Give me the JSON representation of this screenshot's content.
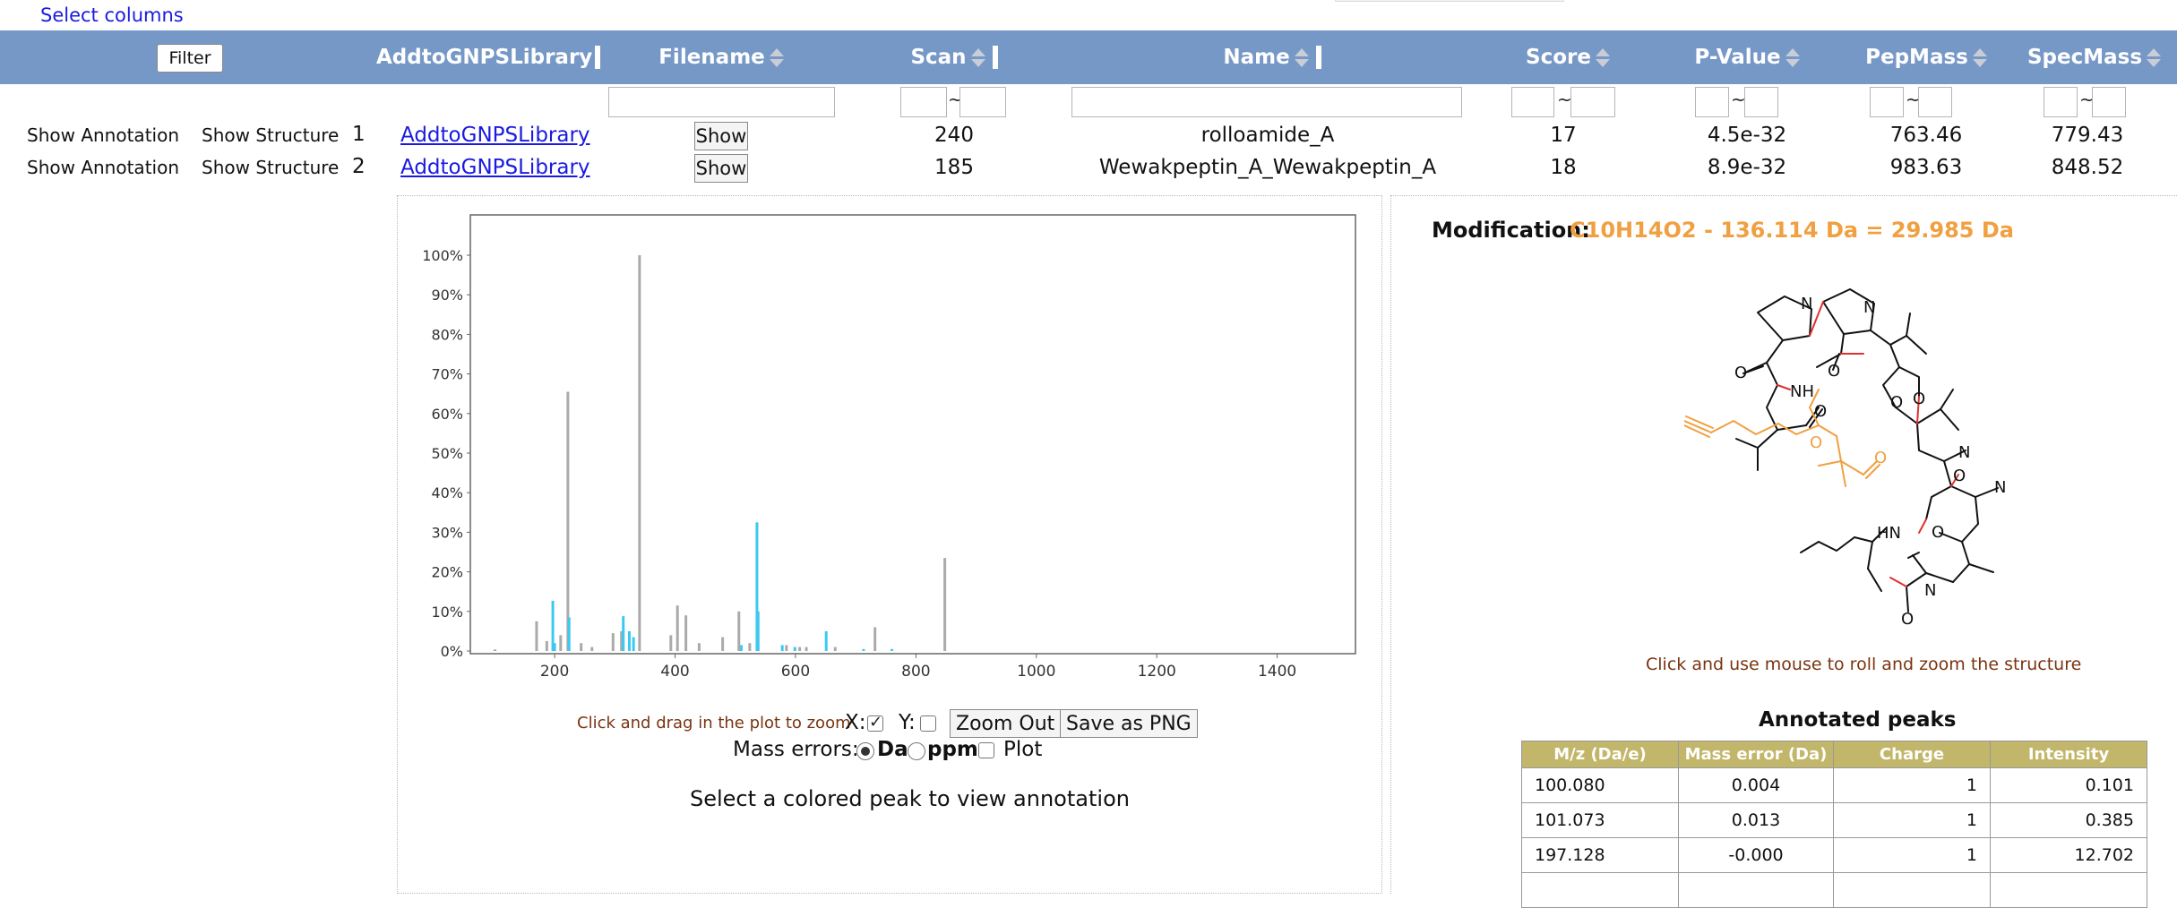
{
  "top": {
    "select_columns": "Select columns"
  },
  "header": {
    "filter_label": "Filter",
    "columns": [
      "AddtoGNPSLibrary",
      "Filename",
      "Scan",
      "Name",
      "Score",
      "P-Value",
      "PepMass",
      "SpecMass"
    ]
  },
  "rows": [
    {
      "show_annotation": "Show Annotation",
      "show_structure": "Show Structure",
      "index": "1",
      "library": "AddtoGNPSLibrary",
      "filename_btn": "Show",
      "scan": "240",
      "name": "rolloamide_A",
      "score": "17",
      "pvalue": "4.5e-32",
      "pepmass": "763.46",
      "specmass": "779.43"
    },
    {
      "show_annotation": "Show Annotation",
      "show_structure": "Show Structure",
      "index": "2",
      "library": "AddtoGNPSLibrary",
      "filename_btn": "Show",
      "scan": "185",
      "name": "Wewakpeptin_A_Wewakpeptin_A",
      "score": "18",
      "pvalue": "8.9e-32",
      "pepmass": "983.63",
      "specmass": "848.52"
    }
  ],
  "range_separator": "~",
  "spectrum": {
    "zoom_hint": "Click and drag in the plot to zoom",
    "x_label": "X:",
    "y_label": "Y:",
    "zoom_out": "Zoom Out",
    "save_png": "Save as PNG",
    "mass_errors_label": "Mass errors:",
    "da_label": "Da",
    "ppm_label": "ppm",
    "plot_label": "Plot",
    "select_peak_hint": "Select a colored peak to view annotation",
    "x_checked": true,
    "y_checked": false,
    "mass_error_unit": "Da"
  },
  "chart_data": {
    "type": "bar",
    "title": "",
    "xlabel": "",
    "ylabel": "",
    "xlim": [
      60,
      1530
    ],
    "ylim": [
      0,
      100
    ],
    "x_ticks": [
      200,
      400,
      600,
      800,
      1000,
      1200,
      1400
    ],
    "y_ticks": [
      "0%",
      "10%",
      "20%",
      "30%",
      "40%",
      "50%",
      "60%",
      "70%",
      "80%",
      "90%",
      "100%"
    ],
    "grid": false,
    "series": [
      {
        "color": "#aaaaaa",
        "peaks": [
          [
            101,
            0.4
          ],
          [
            170,
            7.5
          ],
          [
            187,
            2.5
          ],
          [
            210,
            4
          ],
          [
            222,
            65.5
          ],
          [
            244,
            2
          ],
          [
            262,
            1
          ],
          [
            297,
            4.5
          ],
          [
            311,
            5
          ],
          [
            341,
            100
          ],
          [
            393,
            4
          ],
          [
            404,
            11.5
          ],
          [
            418,
            9
          ],
          [
            440,
            2
          ],
          [
            479,
            3.5
          ],
          [
            506,
            10
          ],
          [
            524,
            2
          ],
          [
            585,
            1.5
          ],
          [
            607,
            1
          ],
          [
            618,
            1
          ],
          [
            666,
            1
          ],
          [
            732,
            6
          ],
          [
            848,
            23.5
          ]
        ]
      },
      {
        "color": "#3cc8f0",
        "peaks": [
          [
            100,
            0.1
          ],
          [
            197,
            12.7
          ],
          [
            200,
            2
          ],
          [
            224,
            8.5
          ],
          [
            314,
            8.8
          ],
          [
            324,
            5
          ],
          [
            331,
            3.5
          ],
          [
            510,
            1.5
          ],
          [
            536,
            32.5
          ],
          [
            538,
            10
          ],
          [
            578,
            1.5
          ],
          [
            599,
            1
          ],
          [
            651,
            5
          ],
          [
            713,
            0.5
          ],
          [
            760,
            0.5
          ]
        ]
      }
    ]
  },
  "structure": {
    "modification_label": "Modification:",
    "modification_value": "C10H14O2 - 136.114 Da = 29.985 Da",
    "hint": "Click and use mouse to roll and zoom the structure",
    "colors": {
      "bond": "#111111",
      "amide": "#e03030",
      "modification": "#f0a040"
    }
  },
  "annotated_peaks": {
    "title": "Annotated peaks",
    "headers": [
      "M/z (Da/e)",
      "Mass error (Da)",
      "Charge",
      "Intensity"
    ],
    "rows": [
      [
        "100.080",
        "0.004",
        "1",
        "0.101"
      ],
      [
        "101.073",
        "0.013",
        "1",
        "0.385"
      ],
      [
        "197.128",
        "-0.000",
        "1",
        "12.702"
      ]
    ]
  }
}
